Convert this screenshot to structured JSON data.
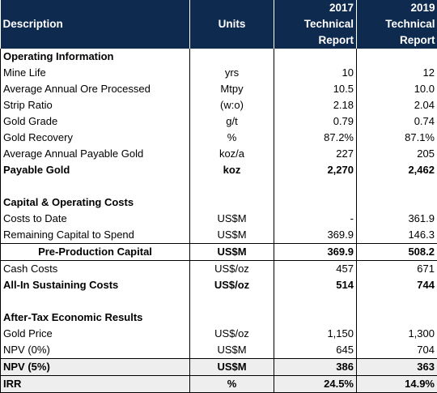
{
  "header": {
    "description": "Description",
    "units": "Units",
    "col2017": "2017 Technical Report",
    "col2019": "2019 Technical Report"
  },
  "rows": [
    {
      "type": "section",
      "desc": "Operating Information",
      "units": "",
      "v2017": "",
      "v2019": ""
    },
    {
      "type": "normal",
      "desc": "Mine Life",
      "units": "yrs",
      "v2017": "10",
      "v2019": "12"
    },
    {
      "type": "normal",
      "desc": "Average Annual Ore Processed",
      "units": "Mtpy",
      "v2017": "10.5",
      "v2019": "10.0"
    },
    {
      "type": "normal",
      "desc": "Strip Ratio",
      "units": "(w:o)",
      "v2017": "2.18",
      "v2019": "2.04"
    },
    {
      "type": "normal",
      "desc": "Gold Grade",
      "units": "g/t",
      "v2017": "0.79",
      "v2019": "0.74"
    },
    {
      "type": "normal",
      "desc": "Gold Recovery",
      "units": "%",
      "v2017": "87.2%",
      "v2019": "87.1%"
    },
    {
      "type": "normal",
      "desc": "Average Annual Payable Gold",
      "units": "koz/a",
      "v2017": "227",
      "v2019": "205"
    },
    {
      "type": "bold",
      "desc": "Payable Gold",
      "units": "koz",
      "v2017": "2,270",
      "v2019": "2,462"
    },
    {
      "type": "blank",
      "desc": "",
      "units": "",
      "v2017": "",
      "v2019": ""
    },
    {
      "type": "section",
      "desc": "Capital & Operating Costs",
      "units": "",
      "v2017": "",
      "v2019": ""
    },
    {
      "type": "normal",
      "desc": "Costs to Date",
      "units": "US$M",
      "v2017": "-",
      "v2019": "361.9"
    },
    {
      "type": "normal",
      "desc": "Remaining Capital to Spend",
      "units": "US$M",
      "v2017": "369.9",
      "v2019": "146.3"
    },
    {
      "type": "bold-centered",
      "desc": "Pre-Production Capital",
      "units": "US$M",
      "v2017": "369.9",
      "v2019": "508.2"
    },
    {
      "type": "normal",
      "desc": "Cash Costs",
      "units": "US$/oz",
      "v2017": "457",
      "v2019": "671"
    },
    {
      "type": "bold",
      "desc": "All-In Sustaining Costs",
      "units": "US$/oz",
      "v2017": "514",
      "v2019": "744"
    },
    {
      "type": "blank",
      "desc": "",
      "units": "",
      "v2017": "",
      "v2019": ""
    },
    {
      "type": "section",
      "desc": "After-Tax Economic Results",
      "units": "",
      "v2017": "",
      "v2019": ""
    },
    {
      "type": "normal",
      "desc": "Gold Price",
      "units": "US$/oz",
      "v2017": "1,150",
      "v2019": "1,300"
    },
    {
      "type": "normal",
      "desc": "NPV (0%)",
      "units": "US$M",
      "v2017": "645",
      "v2019": "704"
    },
    {
      "type": "bold-shaded",
      "desc": "NPV (5%)",
      "units": "US$M",
      "v2017": "386",
      "v2019": "363"
    },
    {
      "type": "bold-shaded-last",
      "desc": "IRR",
      "units": "%",
      "v2017": "24.5%",
      "v2019": "14.9%"
    }
  ]
}
